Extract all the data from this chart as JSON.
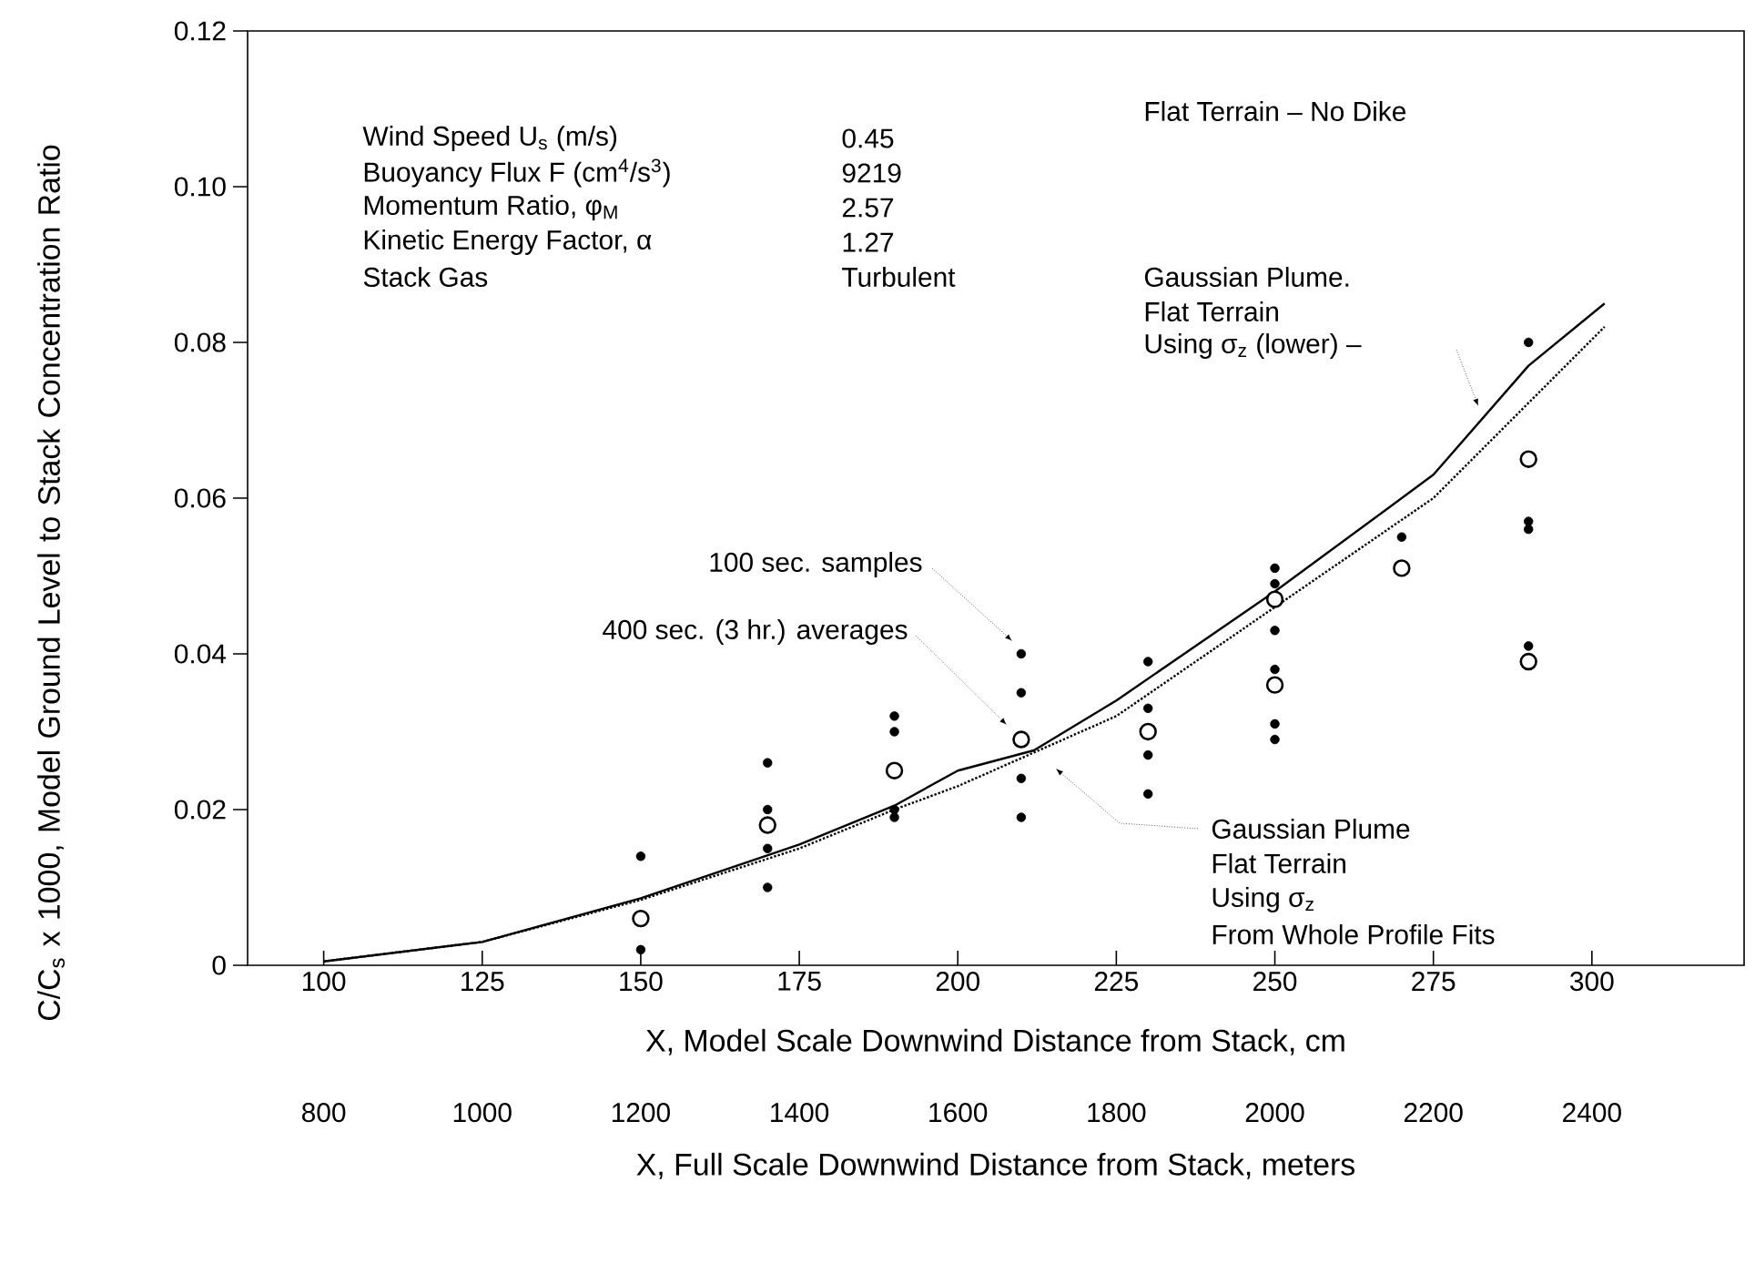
{
  "chart_data": {
    "type": "scatter",
    "xlabel": "X, Model Scale Downwind Distance from Stack, cm",
    "x2label": "X, Full Scale Downwind Distance from Stack, meters",
    "ylabel": "C/C$_{s}$ x 1000, Model Ground Level to Stack Concentration Ratio",
    "xlim": [
      88,
      324
    ],
    "xticks": [
      100,
      125,
      150,
      175,
      200,
      225,
      250,
      275,
      300
    ],
    "x2lim": [
      704,
      2592
    ],
    "x2ticks": [
      800,
      1000,
      1200,
      1400,
      1600,
      1800,
      2000,
      2200,
      2400
    ],
    "ylim": [
      0,
      0.12
    ],
    "yticks": [
      0,
      0.02,
      0.04,
      0.06,
      0.08,
      {
        "value": 0.1,
        "label": "0.10"
      },
      0.12
    ],
    "series": [
      {
        "name": "100 sec. samples",
        "type": "scatter",
        "marker": "circle",
        "color": "#000000",
        "x": [
          150,
          150,
          170,
          170,
          170,
          170,
          190,
          190,
          190,
          190,
          210,
          210,
          210,
          210,
          230,
          230,
          230,
          230,
          250,
          250,
          250,
          250,
          250,
          250,
          270,
          290,
          290,
          290,
          290
        ],
        "values": [
          0.014,
          0.002,
          0.026,
          0.02,
          0.015,
          0.01,
          0.032,
          0.03,
          0.02,
          0.019,
          0.04,
          0.035,
          0.024,
          0.019,
          0.039,
          0.033,
          0.027,
          0.022,
          0.051,
          0.049,
          0.043,
          0.038,
          0.031,
          0.029,
          0.055,
          0.08,
          0.057,
          0.056,
          0.041
        ]
      },
      {
        "name": "400 sec. (3 hr.) averages",
        "type": "scatter",
        "marker": "circle",
        "color": "#000000",
        "x": [
          150,
          170,
          190,
          210,
          230,
          250,
          250,
          270,
          290,
          290
        ],
        "values": [
          0.006,
          0.018,
          0.025,
          0.029,
          0.03,
          0.047,
          0.036,
          0.051,
          0.065,
          0.039
        ]
      },
      {
        "type": "line",
        "line_style": "solid",
        "color": "#000000",
        "x": [
          100,
          125,
          150,
          175,
          190,
          200,
          212,
          225,
          250,
          275,
          290,
          302
        ],
        "values": [
          0.0005,
          0.003,
          0.0086,
          0.0155,
          0.0205,
          0.025,
          0.0276,
          0.034,
          0.048,
          0.063,
          0.077,
          0.085
        ]
      },
      {
        "type": "line",
        "line_style": "dotted",
        "color": "#000000",
        "x": [
          100,
          125,
          150,
          175,
          190,
          200,
          225,
          250,
          275,
          302
        ],
        "values": [
          0.0005,
          0.003,
          0.0084,
          0.015,
          0.02,
          0.023,
          0.032,
          0.046,
          0.06,
          0.082
        ]
      }
    ],
    "annotations": [
      "Wind Speed U$_{s}$ (m/s)",
      "0.45",
      "Buoyancy Flux F (cm$^{4}$/s$^{3}$)",
      "9219",
      "Momentum Ratio, φ$_{M}$",
      "2.57",
      "Kinetic Energy Factor, α",
      "1.27",
      "Stack Gas",
      "Turbulent",
      "Flat Terrain – No Dike",
      "Gaussian Plume.",
      "Flat Terrain",
      "Using σ$_{z}$ (lower) –",
      "Gaussian Plume",
      "Flat Terrain",
      "Using σ$_{z}$",
      "From Whole Profile Fits"
    ]
  }
}
